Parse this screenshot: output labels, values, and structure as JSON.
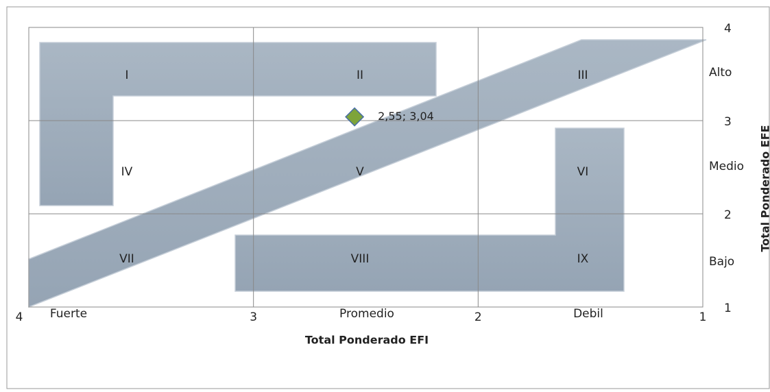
{
  "chart_data": {
    "type": "scatter",
    "x_label": "Total Ponderado EFI",
    "y_label": "Total Ponderado EFE",
    "x": [
      2.55
    ],
    "values": [
      3.04
    ],
    "value_labels": [
      "2,55; 3,04"
    ],
    "color": "#7ea43a",
    "xlim": [
      4,
      1
    ],
    "xticks": [
      4,
      3,
      2,
      1
    ],
    "ylim": [
      1,
      4
    ],
    "yticks": [
      1,
      2,
      3,
      4
    ],
    "grid": true,
    "annotations": [
      "I",
      "II",
      "III",
      "IV",
      "V",
      "VI",
      "VII",
      "VIII",
      "IX"
    ],
    "x_zone_labels": [
      "Fuerte",
      "Promedio",
      "Debil"
    ],
    "y_zone_labels": [
      "Alto",
      "Medio",
      "Bajo"
    ]
  }
}
